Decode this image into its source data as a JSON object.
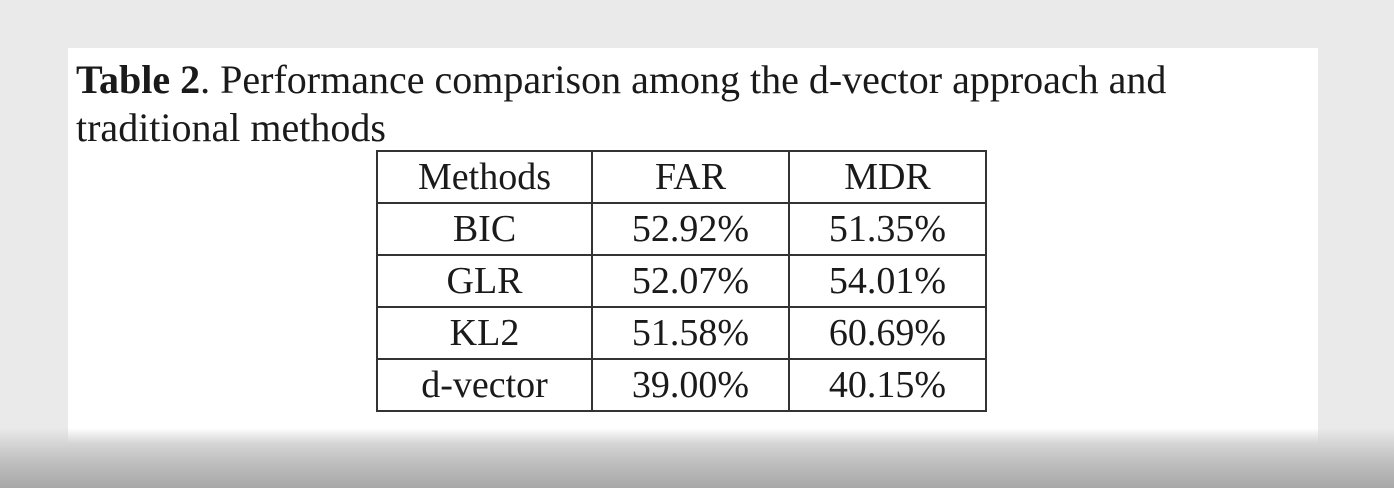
{
  "caption": {
    "label": "Table 2",
    "text": ". Performance comparison among the d-vector approach and traditional methods"
  },
  "table": {
    "headers": [
      "Methods",
      "FAR",
      "MDR"
    ],
    "rows": [
      [
        "BIC",
        "52.92%",
        "51.35%"
      ],
      [
        "GLR",
        "52.07%",
        "54.01%"
      ],
      [
        "KL2",
        "51.58%",
        "60.69%"
      ],
      [
        "d-vector",
        "39.00%",
        "40.15%"
      ]
    ]
  }
}
